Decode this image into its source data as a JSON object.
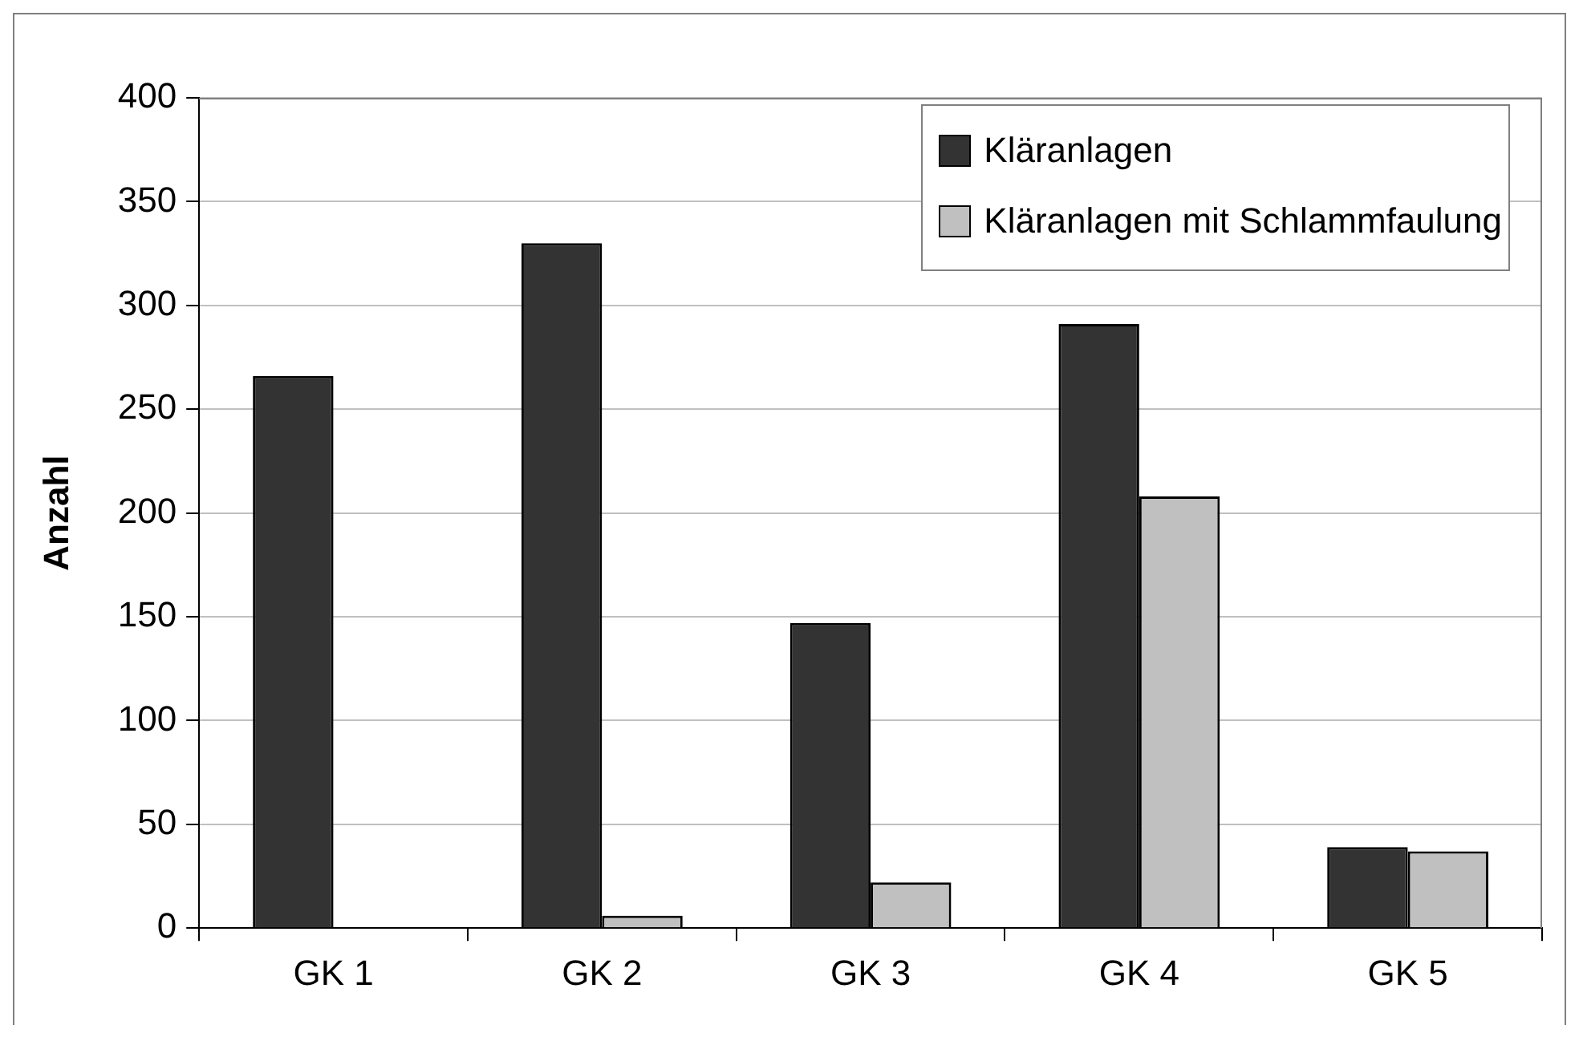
{
  "chart_data": {
    "type": "bar",
    "ylabel": "Anzahl",
    "categories": [
      "GK 1",
      "GK 2",
      "GK 3",
      "GK 4",
      "GK 5"
    ],
    "series": [
      {
        "name": "Kläranlagen",
        "color": "#333333",
        "values": [
          266,
          330,
          147,
          291,
          39
        ]
      },
      {
        "name": "Kläranlagen mit Schlammfaulung",
        "color": "#c0c0c0",
        "values": [
          0,
          6,
          22,
          208,
          37
        ]
      }
    ],
    "ylim": [
      0,
      400
    ],
    "yticks": [
      0,
      50,
      100,
      150,
      200,
      250,
      300,
      350,
      400
    ],
    "grid": "y",
    "legend": "top right"
  }
}
